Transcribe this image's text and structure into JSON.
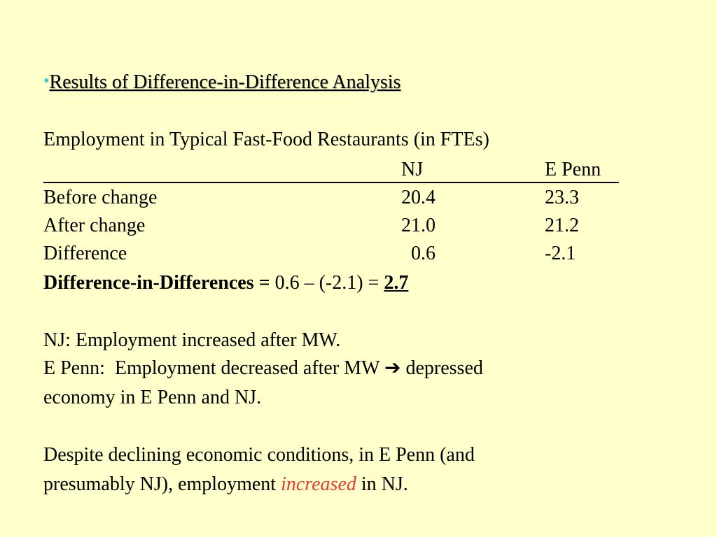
{
  "heading": {
    "bullet": "•",
    "text": "Results of Difference-in-Difference Analysis"
  },
  "table": {
    "caption": "Employment in Typical Fast-Food Restaurants (in FTEs)",
    "columns": [
      "NJ",
      "E Penn"
    ],
    "rows": [
      {
        "label": "Before change",
        "nj": "20.4",
        "ep": "23.3"
      },
      {
        "label": "After change",
        "nj": "21.0",
        "ep": "21.2"
      },
      {
        "label": "Difference",
        "nj": "  0.6",
        "ep": "-2.1"
      }
    ],
    "did": {
      "label": "Difference-in-Differences =",
      "expr": " 0.6 – (-2.1) = ",
      "result": "2.7"
    }
  },
  "notes": {
    "nj": "NJ: Employment increased after MW.",
    "ep_line1": "E Penn:  Employment decreased after MW ",
    "arrow": "➔",
    "ep_line1_end": " depressed",
    "ep_line2": "economy in E Penn and NJ.",
    "conclusion_line1": "Despite declining economic conditions, in E Penn (and",
    "conclusion_line2_start": "presumably NJ), employment ",
    "conclusion_emphasis": "increased",
    "conclusion_line2_end": " in NJ."
  },
  "colors": {
    "background": "#ffffcc",
    "bullet": "#33cccc",
    "emphasis": "#e83838"
  }
}
